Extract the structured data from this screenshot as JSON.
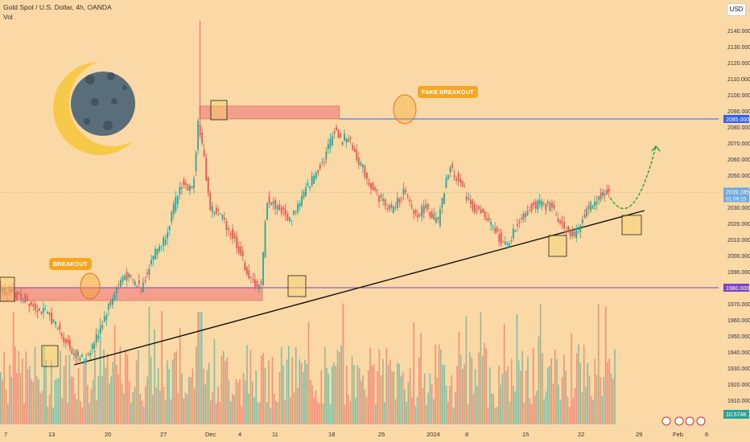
{
  "header": {
    "title": "Gold Spot / U.S. Dollar, 4h, OANDA",
    "volume_label": "Vol",
    "currency_button": "USD"
  },
  "annotations": {
    "breakout": "BREAKOUT",
    "fake_breakout": "FAKE BREAKOUT"
  },
  "price_tags": {
    "resistance": "2085.000",
    "current": "2039.285",
    "countdown": "01:09:15",
    "support": "1980.000",
    "volume": "10.574K"
  },
  "colors": {
    "background": "#fbd9a6",
    "bull": "#26a69a",
    "bear": "#ef5350",
    "zone": "#f28b82",
    "resistance_line": "#2962ff",
    "support_line": "#7e3fc9",
    "trendline": "#111111",
    "projection": "#2e9e3e",
    "moon": "#5a6e7a",
    "crescent": "#f7c948"
  },
  "chart_data": {
    "type": "candlestick",
    "instrument": "Gold Spot / U.S. Dollar",
    "timeframe": "4h",
    "ylim": [
      1900,
      2150
    ],
    "y_ticks": [
      "2140.000",
      "2130.000",
      "2120.000",
      "2110.000",
      "2100.000",
      "2090.000",
      "2080.000",
      "2070.000",
      "2060.000",
      "2050.000",
      "2040.000",
      "2030.000",
      "2020.000",
      "2010.000",
      "2000.000",
      "1990.000",
      "1970.000",
      "1960.000",
      "1950.000",
      "1940.000",
      "1930.000",
      "1920.000",
      "1910.000"
    ],
    "x_ticks": [
      "7",
      "13",
      "20",
      "27",
      "Dec",
      "4",
      "11",
      "18",
      "25",
      "2024",
      "8",
      "15",
      "22",
      "29",
      "Feb",
      "6"
    ],
    "price_path": [
      [
        0,
        1980
      ],
      [
        5,
        1972
      ],
      [
        9,
        1962
      ],
      [
        13,
        1940
      ],
      [
        15,
        1935
      ],
      [
        17,
        1948
      ],
      [
        20,
        1975
      ],
      [
        22,
        1988
      ],
      [
        25,
        1980
      ],
      [
        27,
        2000
      ],
      [
        29,
        2010
      ],
      [
        32,
        2045
      ],
      [
        34,
        2040
      ],
      [
        35,
        2085
      ],
      [
        36,
        2060
      ],
      [
        37,
        2030
      ],
      [
        39,
        2025
      ],
      [
        42,
        2005
      ],
      [
        44,
        1985
      ],
      [
        46,
        1980
      ],
      [
        47,
        2035
      ],
      [
        49,
        2030
      ],
      [
        51,
        2022
      ],
      [
        53,
        2035
      ],
      [
        55,
        2048
      ],
      [
        57,
        2060
      ],
      [
        59,
        2080
      ],
      [
        60,
        2070
      ],
      [
        61,
        2075
      ],
      [
        63,
        2060
      ],
      [
        65,
        2045
      ],
      [
        67,
        2035
      ],
      [
        69,
        2028
      ],
      [
        71,
        2040
      ],
      [
        73,
        2025
      ],
      [
        75,
        2030
      ],
      [
        77,
        2020
      ],
      [
        79,
        2055
      ],
      [
        81,
        2045
      ],
      [
        83,
        2030
      ],
      [
        85,
        2025
      ],
      [
        87,
        2015
      ],
      [
        89,
        2005
      ],
      [
        91,
        2020
      ],
      [
        93,
        2030
      ],
      [
        95,
        2032
      ],
      [
        97,
        2030
      ],
      [
        99,
        2018
      ],
      [
        101,
        2012
      ],
      [
        103,
        2028
      ],
      [
        105,
        2036
      ],
      [
        107,
        2040
      ]
    ],
    "levels": {
      "resistance": 2085.0,
      "support": 1980.0
    },
    "zones": [
      {
        "from": 1972,
        "to": 1980
      },
      {
        "from": 2085,
        "to": 2093
      }
    ],
    "trendline": [
      [
        13,
        1932
      ],
      [
        113,
        2028
      ]
    ],
    "projection": [
      [
        107,
        2036
      ],
      [
        111,
        2028
      ],
      [
        115,
        2068
      ]
    ],
    "current_price": 2039.285,
    "volume_last": "10.574K"
  }
}
